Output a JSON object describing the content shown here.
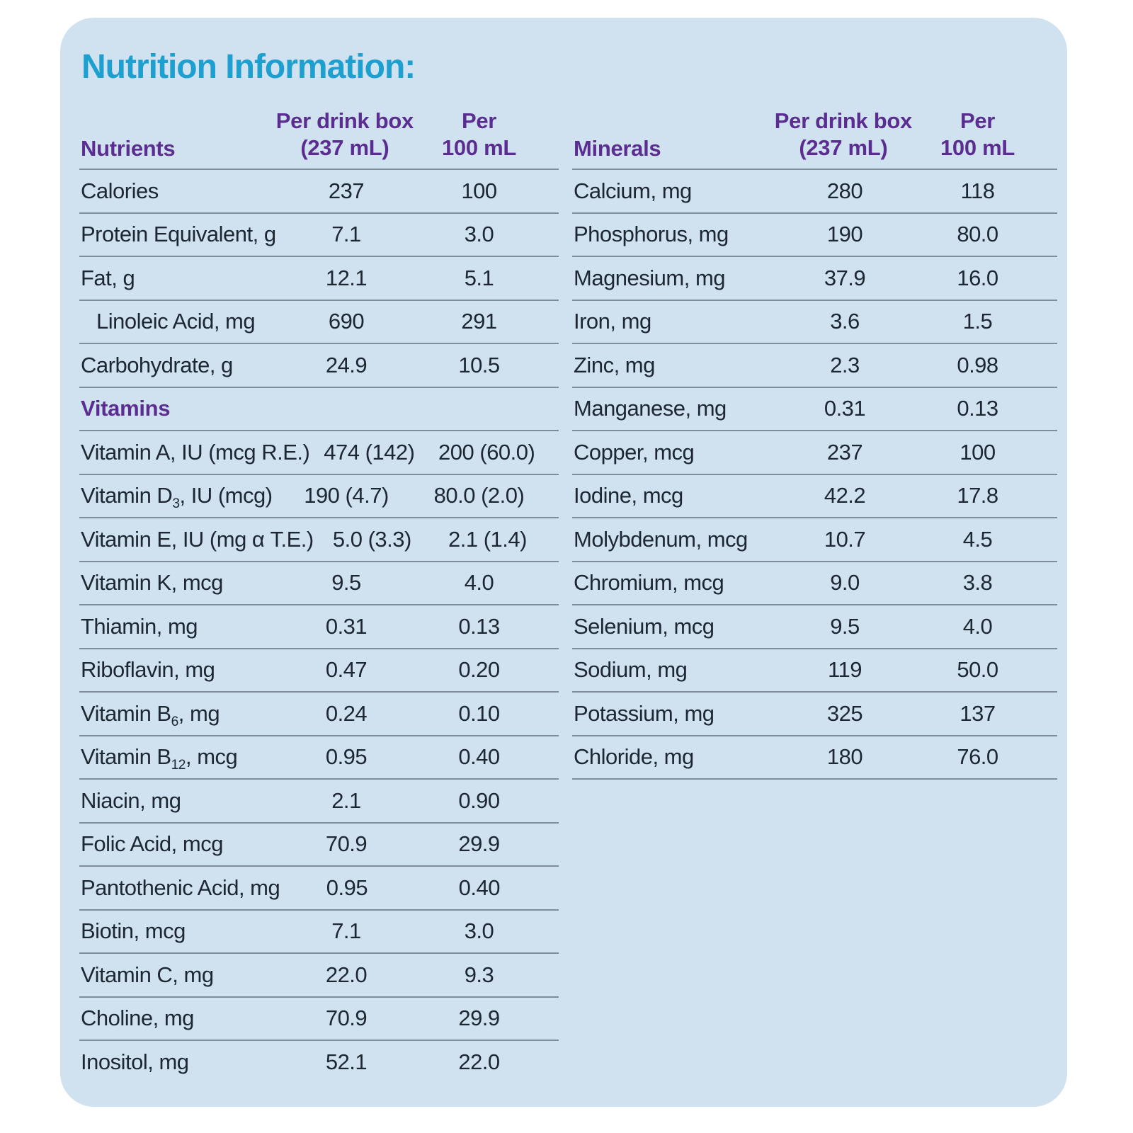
{
  "title": "Nutrition Information:",
  "colors": {
    "card_bg": "#d0e2ef",
    "title": "#1d9fd0",
    "header": "#5b2d90",
    "text": "#1c2733",
    "line": "#7f8d9b"
  },
  "tables": [
    {
      "name": "nutrients",
      "columns": {
        "label": "Nutrients",
        "per_box_line1": "Per drink box",
        "per_box_line2": "(237 mL)",
        "per_100_line1": "Per",
        "per_100_line2": "100 mL"
      },
      "rows": [
        {
          "label": "Calories",
          "per_box": "237",
          "per_100": "100"
        },
        {
          "label": "Protein Equivalent, g",
          "per_box": "7.1",
          "per_100": "3.0"
        },
        {
          "label": "Fat, g",
          "per_box": "12.1",
          "per_100": "5.1"
        },
        {
          "label": "Linoleic Acid, mg",
          "indent": true,
          "per_box": "690",
          "per_100": "291"
        },
        {
          "label": "Carbohydrate, g",
          "per_box": "24.9",
          "per_100": "10.5"
        },
        {
          "section": "Vitamins"
        },
        {
          "label": "Vitamin A, IU (mcg R.E.)",
          "per_box": "474 (142)",
          "per_100": "200 (60.0)"
        },
        {
          "label": "Vitamin D",
          "sub": "3",
          "label_after": ", IU (mcg)",
          "per_box": "190 (4.7)",
          "per_100": "80.0 (2.0)"
        },
        {
          "label": "Vitamin E, IU (mg α T.E.)",
          "per_box": "5.0 (3.3)",
          "per_100": "2.1 (1.4)"
        },
        {
          "label": "Vitamin K, mcg",
          "per_box": "9.5",
          "per_100": "4.0"
        },
        {
          "label": "Thiamin, mg",
          "per_box": "0.31",
          "per_100": "0.13"
        },
        {
          "label": "Riboflavin, mg",
          "per_box": "0.47",
          "per_100": "0.20"
        },
        {
          "label": "Vitamin B",
          "sub": "6",
          "label_after": ", mg",
          "per_box": "0.24",
          "per_100": "0.10"
        },
        {
          "label": "Vitamin B",
          "sub": "12",
          "label_after": ", mcg",
          "per_box": "0.95",
          "per_100": "0.40"
        },
        {
          "label": "Niacin, mg",
          "per_box": "2.1",
          "per_100": "0.90"
        },
        {
          "label": "Folic Acid, mcg",
          "per_box": "70.9",
          "per_100": "29.9"
        },
        {
          "label": "Pantothenic Acid, mg",
          "per_box": "0.95",
          "per_100": "0.40"
        },
        {
          "label": "Biotin, mcg",
          "per_box": "7.1",
          "per_100": "3.0"
        },
        {
          "label": "Vitamin C, mg",
          "per_box": "22.0",
          "per_100": "9.3"
        },
        {
          "label": "Choline, mg",
          "per_box": "70.9",
          "per_100": "29.9"
        },
        {
          "label": "Inositol, mg",
          "per_box": "52.1",
          "per_100": "22.0"
        }
      ]
    },
    {
      "name": "minerals",
      "columns": {
        "label": "Minerals",
        "per_box_line1": "Per drink box",
        "per_box_line2": "(237 mL)",
        "per_100_line1": "Per",
        "per_100_line2": "100 mL"
      },
      "rows": [
        {
          "label": "Calcium, mg",
          "per_box": "280",
          "per_100": "118"
        },
        {
          "label": "Phosphorus, mg",
          "per_box": "190",
          "per_100": "80.0"
        },
        {
          "label": "Magnesium, mg",
          "per_box": "37.9",
          "per_100": "16.0"
        },
        {
          "label": "Iron, mg",
          "per_box": "3.6",
          "per_100": "1.5"
        },
        {
          "label": "Zinc, mg",
          "per_box": "2.3",
          "per_100": "0.98"
        },
        {
          "label": "Manganese, mg",
          "per_box": "0.31",
          "per_100": "0.13"
        },
        {
          "label": "Copper, mcg",
          "per_box": "237",
          "per_100": "100"
        },
        {
          "label": "Iodine, mcg",
          "per_box": "42.2",
          "per_100": "17.8"
        },
        {
          "label": "Molybdenum, mcg",
          "per_box": "10.7",
          "per_100": "4.5"
        },
        {
          "label": "Chromium, mcg",
          "per_box": "9.0",
          "per_100": "3.8"
        },
        {
          "label": "Selenium, mcg",
          "per_box": "9.5",
          "per_100": "4.0"
        },
        {
          "label": "Sodium, mg",
          "per_box": "119",
          "per_100": "50.0"
        },
        {
          "label": "Potassium, mg",
          "per_box": "325",
          "per_100": "137"
        },
        {
          "label": "Chloride, mg",
          "per_box": "180",
          "per_100": "76.0"
        }
      ]
    }
  ]
}
